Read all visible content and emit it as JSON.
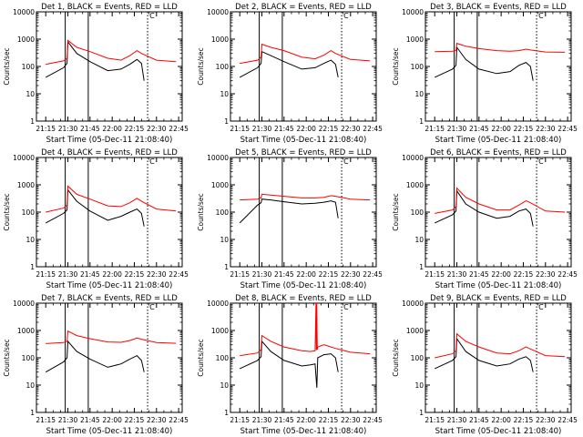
{
  "chart_data": [
    {
      "type": "line",
      "title": "Det 1, BLACK = Events, RED = LLD",
      "xlabel": "Start Time (05-Dec-11 21:08:40)",
      "ylabel": "Counts/sec",
      "x_ticks": [
        "21:15",
        "21:30",
        "21:45",
        "22:00",
        "22:15",
        "22:30",
        "22:45"
      ],
      "y_ticks": [
        "1",
        "10",
        "100",
        "1000",
        "10000"
      ],
      "scale": "log",
      "ylim": [
        1,
        10000
      ],
      "marker": "C",
      "series": [
        {
          "color": "#000000",
          "x": [
            21.25,
            21.45,
            21.49,
            21.5,
            21.6,
            21.75,
            21.95,
            22.1,
            22.2,
            22.28,
            22.33,
            22.36
          ],
          "y": [
            40,
            90,
            130,
            800,
            300,
            150,
            70,
            80,
            120,
            180,
            130,
            30
          ]
        },
        {
          "color": "#ff0000",
          "x": [
            21.25,
            21.45,
            21.49,
            21.5,
            21.6,
            21.75,
            21.95,
            22.1,
            22.2,
            22.28,
            22.33,
            22.5,
            22.72
          ],
          "y": [
            120,
            160,
            200,
            900,
            500,
            350,
            200,
            170,
            250,
            380,
            300,
            170,
            150
          ]
        }
      ],
      "vlines_solid": [
        21.47,
        21.73
      ],
      "vlines_dotted": [
        22.4
      ]
    },
    {
      "type": "line",
      "title": "Det 2, BLACK = Events, RED = LLD",
      "xlabel": "Start Time (05-Dec-11 21:08:40)",
      "ylabel": "Counts/sec",
      "x_ticks": [
        "21:15",
        "21:30",
        "21:45",
        "22:00",
        "22:15",
        "22:30",
        "22:45"
      ],
      "y_ticks": [
        "1",
        "10",
        "100",
        "1000",
        "10000"
      ],
      "scale": "log",
      "ylim": [
        1,
        10000
      ],
      "marker": "C",
      "series": [
        {
          "color": "#000000",
          "x": [
            21.25,
            21.45,
            21.49,
            21.5,
            21.6,
            21.75,
            21.95,
            22.1,
            22.2,
            22.28,
            22.33,
            22.36
          ],
          "y": [
            40,
            90,
            130,
            350,
            250,
            150,
            80,
            90,
            130,
            170,
            120,
            40
          ]
        },
        {
          "color": "#ff0000",
          "x": [
            21.25,
            21.45,
            21.49,
            21.5,
            21.6,
            21.75,
            21.95,
            22.1,
            22.2,
            22.28,
            22.33,
            22.5,
            22.72
          ],
          "y": [
            130,
            170,
            220,
            650,
            500,
            380,
            220,
            190,
            260,
            380,
            300,
            180,
            160
          ]
        }
      ],
      "vlines_solid": [
        21.47,
        21.73
      ],
      "vlines_dotted": [
        22.4
      ]
    },
    {
      "type": "line",
      "title": "Det 3, BLACK = Events, RED = LLD",
      "xlabel": "Start Time (05-Dec-11 21:08:40)",
      "ylabel": "Counts/sec",
      "x_ticks": [
        "21:15",
        "21:30",
        "21:45",
        "22:00",
        "22:15",
        "22:30",
        "22:45"
      ],
      "y_ticks": [
        "1",
        "10",
        "100",
        "1000",
        "10000"
      ],
      "scale": "log",
      "ylim": [
        1,
        10000
      ],
      "marker": "C",
      "series": [
        {
          "color": "#000000",
          "x": [
            21.25,
            21.45,
            21.49,
            21.5,
            21.6,
            21.75,
            21.95,
            22.1,
            22.2,
            22.28,
            22.33,
            22.36
          ],
          "y": [
            40,
            80,
            110,
            500,
            180,
            80,
            55,
            65,
            110,
            140,
            100,
            30
          ]
        },
        {
          "color": "#ff0000",
          "x": [
            21.25,
            21.45,
            21.49,
            21.5,
            21.6,
            21.75,
            21.95,
            22.1,
            22.2,
            22.28,
            22.33,
            22.5,
            22.72
          ],
          "y": [
            350,
            360,
            380,
            700,
            550,
            450,
            380,
            360,
            380,
            430,
            400,
            340,
            330
          ]
        }
      ],
      "vlines_solid": [
        21.47,
        21.73
      ],
      "vlines_dotted": [
        22.4
      ]
    },
    {
      "type": "line",
      "title": "Det 4, BLACK = Events, RED = LLD",
      "xlabel": "Start Time (05-Dec-11 21:08:40)",
      "ylabel": "Counts/sec",
      "x_ticks": [
        "21:15",
        "21:30",
        "21:45",
        "22:00",
        "22:15",
        "22:30",
        "22:45"
      ],
      "y_ticks": [
        "1",
        "10",
        "100",
        "1000",
        "10000"
      ],
      "scale": "log",
      "ylim": [
        1,
        10000
      ],
      "marker": "C",
      "series": [
        {
          "color": "#000000",
          "x": [
            21.25,
            21.45,
            21.49,
            21.5,
            21.6,
            21.75,
            21.95,
            22.1,
            22.2,
            22.28,
            22.33,
            22.36
          ],
          "y": [
            40,
            90,
            120,
            650,
            250,
            110,
            50,
            70,
            100,
            130,
            90,
            30
          ]
        },
        {
          "color": "#ff0000",
          "x": [
            21.25,
            21.45,
            21.49,
            21.5,
            21.6,
            21.75,
            21.95,
            22.1,
            22.2,
            22.28,
            22.33,
            22.5,
            22.72
          ],
          "y": [
            100,
            140,
            180,
            900,
            450,
            300,
            170,
            160,
            220,
            320,
            250,
            130,
            110
          ]
        }
      ],
      "vlines_solid": [
        21.47,
        21.73
      ],
      "vlines_dotted": [
        22.4
      ]
    },
    {
      "type": "line",
      "title": "Det 5, BLACK = Events, RED = LLD",
      "xlabel": "Start Time (05-Dec-11 21:08:40)",
      "ylabel": "Counts/sec",
      "x_ticks": [
        "21:15",
        "21:30",
        "21:45",
        "22:00",
        "22:15",
        "22:30",
        "22:45"
      ],
      "y_ticks": [
        "1",
        "10",
        "100",
        "1000",
        "10000"
      ],
      "scale": "log",
      "ylim": [
        1,
        10000
      ],
      "marker": "C",
      "series": [
        {
          "color": "#000000",
          "x": [
            21.25,
            21.45,
            21.49,
            21.5,
            21.6,
            21.75,
            21.95,
            22.1,
            22.2,
            22.28,
            22.33,
            22.36
          ],
          "y": [
            40,
            180,
            220,
            300,
            280,
            240,
            200,
            210,
            230,
            260,
            230,
            60
          ]
        },
        {
          "color": "#ff0000",
          "x": [
            21.25,
            21.45,
            21.49,
            21.5,
            21.6,
            21.75,
            21.95,
            22.1,
            22.2,
            22.28,
            22.33,
            22.5,
            22.72
          ],
          "y": [
            280,
            300,
            330,
            450,
            420,
            380,
            330,
            330,
            350,
            400,
            380,
            300,
            280
          ]
        }
      ],
      "vlines_solid": [
        21.47,
        21.73
      ],
      "vlines_dotted": [
        22.4
      ]
    },
    {
      "type": "line",
      "title": "Det 6, BLACK = Events, RED = LLD",
      "xlabel": "Start Time (05-Dec-11 21:08:40)",
      "ylabel": "Counts/sec",
      "x_ticks": [
        "21:15",
        "21:30",
        "21:45",
        "22:00",
        "22:15",
        "22:30",
        "22:45"
      ],
      "y_ticks": [
        "1",
        "10",
        "100",
        "1000",
        "10000"
      ],
      "scale": "log",
      "ylim": [
        1,
        10000
      ],
      "marker": "C",
      "series": [
        {
          "color": "#000000",
          "x": [
            21.25,
            21.45,
            21.49,
            21.5,
            21.6,
            21.75,
            21.95,
            22.1,
            22.2,
            22.28,
            22.33,
            22.36
          ],
          "y": [
            40,
            80,
            110,
            600,
            200,
            100,
            60,
            70,
            110,
            130,
            90,
            30
          ]
        },
        {
          "color": "#ff0000",
          "x": [
            21.25,
            21.45,
            21.49,
            21.5,
            21.6,
            21.75,
            21.95,
            22.1,
            22.2,
            22.28,
            22.33,
            22.5,
            22.72
          ],
          "y": [
            90,
            120,
            160,
            750,
            350,
            200,
            120,
            120,
            180,
            260,
            220,
            110,
            100
          ]
        }
      ],
      "vlines_solid": [
        21.47,
        21.73
      ],
      "vlines_dotted": [
        22.4
      ]
    },
    {
      "type": "line",
      "title": "Det 7, BLACK = Events, RED = LLD",
      "xlabel": "Start Time (05-Dec-11 21:08:40)",
      "ylabel": "Counts/sec",
      "x_ticks": [
        "21:15",
        "21:30",
        "21:45",
        "22:00",
        "22:15",
        "22:30",
        "22:45"
      ],
      "y_ticks": [
        "1",
        "10",
        "100",
        "1000",
        "10000"
      ],
      "scale": "log",
      "ylim": [
        1,
        10000
      ],
      "marker": "C",
      "series": [
        {
          "color": "#000000",
          "x": [
            21.25,
            21.45,
            21.49,
            21.5,
            21.6,
            21.75,
            21.95,
            22.1,
            22.2,
            22.28,
            22.33,
            22.36
          ],
          "y": [
            30,
            70,
            100,
            400,
            170,
            90,
            45,
            60,
            90,
            120,
            80,
            30
          ]
        },
        {
          "color": "#ff0000",
          "x": [
            21.25,
            21.45,
            21.49,
            21.5,
            21.6,
            21.75,
            21.95,
            22.1,
            22.2,
            22.28,
            22.33,
            22.5,
            22.72
          ],
          "y": [
            330,
            360,
            400,
            950,
            650,
            500,
            380,
            370,
            430,
            530,
            480,
            360,
            340
          ]
        }
      ],
      "vlines_solid": [
        21.47,
        21.73
      ],
      "vlines_dotted": [
        22.4
      ]
    },
    {
      "type": "line",
      "title": "Det 8, BLACK = Events, RED = LLD",
      "xlabel": "Start Time (05-Dec-11 21:08:40)",
      "ylabel": "Counts/sec",
      "x_ticks": [
        "21:15",
        "21:30",
        "21:45",
        "22:00",
        "22:15",
        "22:30",
        "22:45"
      ],
      "y_ticks": [
        "1",
        "10",
        "100",
        "1000",
        "10000"
      ],
      "scale": "log",
      "ylim": [
        1,
        10000
      ],
      "marker": "C",
      "series": [
        {
          "color": "#000000",
          "x": [
            21.25,
            21.45,
            21.49,
            21.5,
            21.6,
            21.75,
            21.95,
            22.05,
            22.1,
            22.12,
            22.13,
            22.2,
            22.28,
            22.33,
            22.36
          ],
          "y": [
            40,
            80,
            110,
            400,
            170,
            80,
            50,
            55,
            60,
            8,
            100,
            130,
            140,
            100,
            30
          ]
        },
        {
          "color": "#ff0000",
          "x": [
            21.25,
            21.45,
            21.49,
            21.5,
            21.6,
            21.75,
            21.95,
            22.05,
            22.1,
            22.11,
            22.115,
            22.12,
            22.125,
            22.13,
            22.2,
            22.28,
            22.33,
            22.5,
            22.72
          ],
          "y": [
            120,
            150,
            200,
            650,
            400,
            250,
            180,
            170,
            180,
            10000,
            190,
            10000,
            200,
            250,
            300,
            250,
            220,
            160,
            140
          ]
        }
      ],
      "vlines_solid": [
        21.47,
        21.73
      ],
      "vlines_dotted": [
        22.4
      ]
    },
    {
      "type": "line",
      "title": "Det 9, BLACK = Events, RED = LLD",
      "xlabel": "Start Time (05-Dec-11 21:08:40)",
      "ylabel": "Counts/sec",
      "x_ticks": [
        "21:15",
        "21:30",
        "21:45",
        "22:00",
        "22:15",
        "22:30",
        "22:45"
      ],
      "y_ticks": [
        "1",
        "10",
        "100",
        "1000",
        "10000"
      ],
      "scale": "log",
      "ylim": [
        1,
        10000
      ],
      "marker": "C",
      "series": [
        {
          "color": "#000000",
          "x": [
            21.25,
            21.45,
            21.49,
            21.5,
            21.6,
            21.75,
            21.95,
            22.1,
            22.2,
            22.28,
            22.33,
            22.36
          ],
          "y": [
            40,
            80,
            110,
            500,
            170,
            80,
            50,
            60,
            90,
            110,
            80,
            30
          ]
        },
        {
          "color": "#ff0000",
          "x": [
            21.25,
            21.45,
            21.49,
            21.5,
            21.6,
            21.75,
            21.95,
            22.1,
            22.2,
            22.28,
            22.33,
            22.5,
            22.72
          ],
          "y": [
            100,
            140,
            180,
            750,
            400,
            250,
            150,
            140,
            180,
            250,
            210,
            120,
            110
          ]
        }
      ],
      "vlines_solid": [
        21.47,
        21.73
      ],
      "vlines_dotted": [
        22.4
      ]
    }
  ]
}
